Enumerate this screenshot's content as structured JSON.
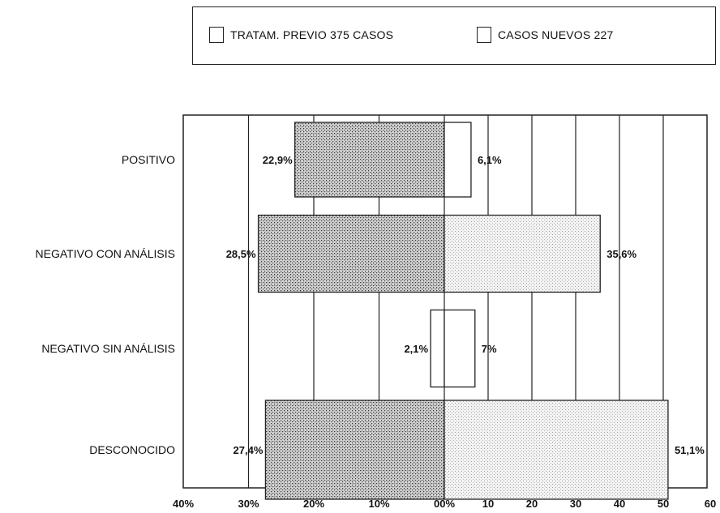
{
  "legend": {
    "left": "TRATAM. PREVIO 375 CASOS",
    "right": "CASOS NUEVOS 227"
  },
  "chart_data": {
    "type": "bar",
    "orientation": "horizontal-diverging",
    "categories": [
      "POSITIVO",
      "NEGATIVO CON ANÁLISIS",
      "NEGATIVO SIN ANÁLISIS",
      "DESCONOCIDO"
    ],
    "series": [
      {
        "name": "TRATAM. PREVIO 375 CASOS",
        "side": "left",
        "values": [
          22.9,
          28.5,
          2.1,
          27.4
        ]
      },
      {
        "name": "CASOS NUEVOS 227",
        "side": "right",
        "values": [
          6.1,
          35.6,
          7,
          51.1
        ]
      }
    ],
    "left_labels": [
      "22,9%",
      "28,5%",
      "2,1%",
      "27,4%"
    ],
    "right_labels": [
      "6,1%",
      "35,6%",
      "7%",
      "51,1%"
    ],
    "left_ticks": [
      "40%",
      "30%",
      "20%",
      "10%",
      "00%"
    ],
    "right_ticks": [
      "10",
      "20",
      "30",
      "40",
      "50",
      "60"
    ],
    "xlim_left": [
      40,
      0
    ],
    "xlim_right": [
      0,
      60
    ],
    "grid": true
  }
}
